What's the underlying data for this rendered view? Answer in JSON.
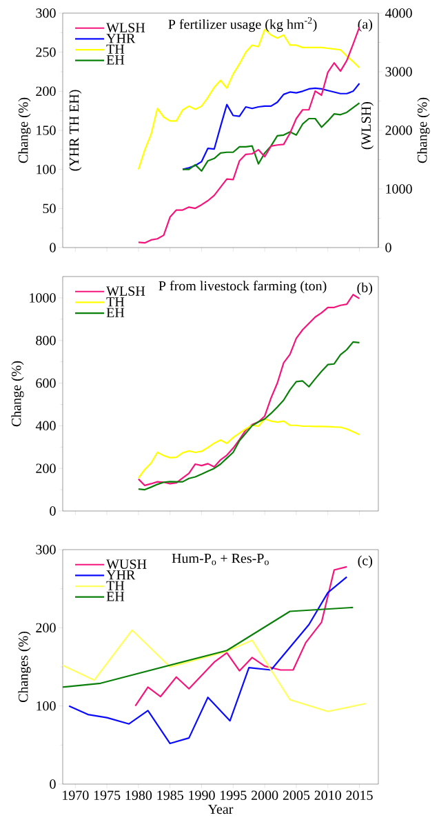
{
  "chart_data": [
    {
      "type": "line",
      "title": "P fertilizer usage (kg hm$^{-2}$)",
      "ylabel": "Change (%)",
      "y2label": "Change (%)",
      "annotations": [
        "(a)",
        "(YHR TH EH)",
        "(WLSH)"
      ],
      "xlim": [
        1968,
        2018
      ],
      "xticks": [
        1970,
        1975,
        1980,
        1985,
        1990,
        1995,
        2000,
        2005,
        2010,
        2015
      ],
      "ylim": [
        0,
        300
      ],
      "yticks": [
        0,
        50,
        100,
        150,
        200,
        250,
        300
      ],
      "y2lim": [
        0,
        4000
      ],
      "y2ticks": [
        0,
        1000,
        2000,
        3000,
        4000
      ],
      "tick_labels": "y",
      "legend": "top left",
      "series": [
        {
          "name": "WLSH",
          "color": "#f5147c",
          "axis": "y2",
          "x": [
            1980,
            1981,
            1982,
            1983,
            1984,
            1985,
            1986,
            1987,
            1988,
            1989,
            1990,
            1991,
            1992,
            1993,
            1994,
            1995,
            1996,
            1997,
            1998,
            1999,
            2000,
            2001,
            2002,
            2003,
            2004,
            2005,
            2006,
            2007,
            2008,
            2009,
            2010,
            2011,
            2012,
            2013,
            2014,
            2015
          ],
          "values": [
            90,
            80,
            130,
            150,
            210,
            520,
            640,
            640,
            690,
            670,
            730,
            800,
            890,
            1030,
            1170,
            1160,
            1480,
            1590,
            1600,
            1670,
            1550,
            1730,
            1750,
            1760,
            1950,
            2200,
            2350,
            2350,
            2670,
            2600,
            2990,
            3150,
            3010,
            3190,
            3470,
            3760
          ]
        },
        {
          "name": "YHR",
          "color": "#0a0aff",
          "x": [
            1987,
            1988,
            1989,
            1990,
            1991,
            1992,
            1993,
            1994,
            1995,
            1996,
            1997,
            1998,
            1999,
            2000,
            2001,
            2002,
            2003,
            2004,
            2005,
            2006,
            2007,
            2008,
            2009,
            2010,
            2011,
            2012,
            2013,
            2014,
            2015
          ],
          "values": [
            100,
            102,
            105,
            110,
            127,
            126,
            155,
            183,
            169,
            168,
            180,
            178,
            180,
            181,
            181,
            186,
            196,
            199,
            198,
            200,
            203,
            204,
            203,
            201,
            199,
            197,
            197,
            200,
            210
          ]
        },
        {
          "name": "TH",
          "color": "#ffff00",
          "x": [
            1980,
            1981,
            1982,
            1983,
            1984,
            1985,
            1986,
            1987,
            1988,
            1989,
            1990,
            1991,
            1992,
            1993,
            1994,
            1995,
            1996,
            1997,
            1998,
            1999,
            2000,
            2001,
            2002,
            2003,
            2004,
            2005,
            2006,
            2007,
            2008,
            2009,
            2010,
            2011,
            2012,
            2013,
            2014,
            2015
          ],
          "values": [
            100,
            125,
            145,
            178,
            167,
            162,
            162,
            176,
            181,
            177,
            181,
            192,
            205,
            214,
            204,
            222,
            235,
            250,
            259,
            257,
            279,
            272,
            268,
            272,
            259,
            259,
            256,
            256,
            256,
            256,
            255,
            254,
            253,
            245,
            238,
            230
          ]
        },
        {
          "name": "EH",
          "color": "#0a800a",
          "x": [
            1987,
            1988,
            1989,
            1990,
            1991,
            1992,
            1993,
            1994,
            1995,
            1996,
            1997,
            1998,
            1999,
            2000,
            2001,
            2002,
            2003,
            2004,
            2005,
            2006,
            2007,
            2008,
            2009,
            2010,
            2011,
            2012,
            2013,
            2014,
            2015
          ],
          "values": [
            100,
            100,
            106,
            98,
            111,
            114,
            121,
            122,
            122,
            129,
            129,
            130,
            107,
            121,
            130,
            143,
            144,
            148,
            144,
            158,
            165,
            165,
            154,
            162,
            171,
            170,
            173,
            179,
            185
          ]
        }
      ]
    },
    {
      "type": "line",
      "title": "P from livestock farming (ton)",
      "ylabel": "Change (%)",
      "annotations": [
        "(b)"
      ],
      "xlim": [
        1968,
        2018
      ],
      "xticks": [
        1970,
        1975,
        1980,
        1985,
        1990,
        1995,
        2000,
        2005,
        2010,
        2015
      ],
      "ylim": [
        0,
        1100
      ],
      "yticks": [
        0,
        200,
        400,
        600,
        800,
        1000
      ],
      "tick_labels": "y",
      "legend": "top left",
      "series": [
        {
          "name": "WLSH",
          "color": "#f5147c",
          "x": [
            1980,
            1981,
            1982,
            1983,
            1984,
            1985,
            1986,
            1987,
            1988,
            1989,
            1990,
            1991,
            1992,
            1993,
            1994,
            1995,
            1996,
            1997,
            1998,
            1999,
            2000,
            2001,
            2002,
            2003,
            2004,
            2005,
            2006,
            2007,
            2008,
            2009,
            2010,
            2011,
            2012,
            2013,
            2014,
            2015
          ],
          "values": [
            150,
            120,
            128,
            137,
            135,
            128,
            132,
            155,
            177,
            220,
            213,
            222,
            207,
            240,
            262,
            295,
            335,
            380,
            405,
            418,
            445,
            530,
            600,
            695,
            735,
            810,
            850,
            880,
            910,
            930,
            955,
            955,
            965,
            970,
            1015,
            997
          ]
        },
        {
          "name": "TH",
          "color": "#ffff00",
          "x": [
            1980,
            1981,
            1982,
            1983,
            1984,
            1985,
            1986,
            1987,
            1988,
            1989,
            1990,
            1991,
            1992,
            1993,
            1994,
            1995,
            1996,
            1997,
            1998,
            1999,
            2000,
            2001,
            2002,
            2003,
            2004,
            2005,
            2006,
            2007,
            2008,
            2009,
            2010,
            2011,
            2012,
            2013,
            2014,
            2015
          ],
          "values": [
            155,
            195,
            225,
            275,
            260,
            250,
            252,
            273,
            282,
            275,
            280,
            298,
            318,
            333,
            317,
            345,
            365,
            385,
            402,
            398,
            432,
            422,
            417,
            422,
            402,
            402,
            398,
            398,
            397,
            397,
            396,
            394,
            393,
            385,
            372,
            358
          ]
        },
        {
          "name": "EH",
          "color": "#0a800a",
          "x": [
            1980,
            1981,
            1982,
            1983,
            1984,
            1985,
            1986,
            1987,
            1988,
            1989,
            1990,
            1991,
            1992,
            1993,
            1994,
            1995,
            1996,
            1997,
            1998,
            1999,
            2000,
            2001,
            2002,
            2003,
            2004,
            2005,
            2006,
            2007,
            2008,
            2009,
            2010,
            2011,
            2012,
            2013,
            2014,
            2015
          ],
          "values": [
            103,
            100,
            112,
            125,
            135,
            138,
            137,
            137,
            153,
            160,
            173,
            187,
            200,
            220,
            248,
            275,
            330,
            365,
            400,
            418,
            432,
            458,
            488,
            520,
            568,
            607,
            610,
            583,
            620,
            655,
            687,
            690,
            733,
            757,
            793,
            790
          ]
        }
      ]
    },
    {
      "type": "line",
      "title": "Hum-P$_{o}$ + Res-P$_{o}$",
      "xlabel": "Year",
      "ylabel": "Changes (%)",
      "annotations": [
        "(c)"
      ],
      "xlim": [
        1968,
        2018
      ],
      "xticks": [
        1970,
        1975,
        1980,
        1985,
        1990,
        1995,
        2000,
        2005,
        2010,
        2015
      ],
      "ylim": [
        0,
        300
      ],
      "yticks": [
        0,
        100,
        200,
        300
      ],
      "legend": "top left",
      "series": [
        {
          "name": "WUSH",
          "color": "#f5147c",
          "x": [
            1979.5,
            1981.5,
            1983.5,
            1986,
            1988,
            1992,
            1994,
            1996,
            1998,
            2000,
            2002.5,
            2004.5,
            2006.5,
            2009,
            2011,
            2013
          ],
          "values": [
            100,
            124,
            112,
            137,
            122,
            156,
            168,
            145,
            162,
            151,
            146,
            146,
            181,
            207,
            274,
            278
          ]
        },
        {
          "name": "YHR",
          "color": "#0a0aff",
          "x": [
            1969,
            1972,
            1975,
            1978.5,
            1981.5,
            1985,
            1988,
            1991,
            1994.5,
            1997.5,
            2001,
            2007,
            2010,
            2013
          ],
          "values": [
            100,
            89,
            85,
            77,
            94,
            52,
            59,
            111,
            81,
            149,
            146,
            204,
            245,
            265
          ]
        },
        {
          "name": "TH",
          "color": "#ffff60",
          "x": [
            1968,
            1973,
            1979,
            1985,
            1994,
            1998,
            2004,
            2010,
            2016
          ],
          "values": [
            152,
            133,
            197,
            150,
            170,
            184,
            108,
            93,
            103
          ]
        },
        {
          "name": "EH",
          "color": "#0a800a",
          "x": [
            1968,
            1974,
            1994,
            2004,
            2014
          ],
          "values": [
            124,
            129,
            171,
            221,
            226
          ]
        }
      ]
    }
  ]
}
